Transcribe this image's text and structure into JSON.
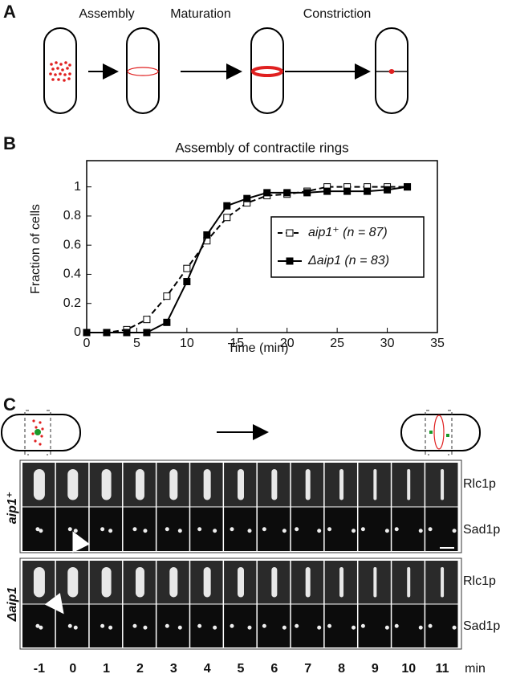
{
  "panel_labels": [
    "A",
    "B",
    "C"
  ],
  "panel_a": {
    "stages": [
      "Assembly",
      "Maturation",
      "Constriction"
    ]
  },
  "chart_data": {
    "type": "line",
    "title": "Assembly of contractile rings",
    "x_label": "Time (min)",
    "y_label": "Fraction of cells",
    "x": [
      0,
      2,
      4,
      6,
      8,
      10,
      12,
      14,
      16,
      18,
      20,
      22,
      24,
      26,
      28,
      30,
      32
    ],
    "series": [
      {
        "name": "aip1⁺ (n = 87)",
        "color": "#000000",
        "marker": "open-square",
        "dashed": true,
        "values": [
          0,
          0,
          0.02,
          0.09,
          0.25,
          0.44,
          0.63,
          0.79,
          0.89,
          0.94,
          0.95,
          0.97,
          1.0,
          1.0,
          1.0,
          1.0,
          1.0
        ]
      },
      {
        "name": "Δaip1 (n = 83)",
        "color": "#000000",
        "marker": "filled-square",
        "dashed": false,
        "values": [
          0,
          0,
          0,
          0,
          0.07,
          0.35,
          0.67,
          0.87,
          0.92,
          0.96,
          0.96,
          0.96,
          0.97,
          0.97,
          0.97,
          0.98,
          1.0
        ]
      }
    ],
    "xlim": [
      0,
      35
    ],
    "xticks": [
      0,
      5,
      10,
      15,
      20,
      25,
      30,
      35
    ],
    "ylim": [
      0,
      1.18
    ],
    "yticks": [
      0,
      0.2,
      0.4,
      0.6,
      0.8,
      1
    ]
  },
  "panel_c": {
    "strains": [
      "aip1⁺",
      "Δaip1"
    ],
    "channels": [
      "Rlc1p",
      "Sad1p"
    ],
    "timepoints": [
      -1,
      0,
      1,
      2,
      3,
      4,
      5,
      6,
      7,
      8,
      9,
      10,
      11
    ],
    "unit": "min"
  }
}
